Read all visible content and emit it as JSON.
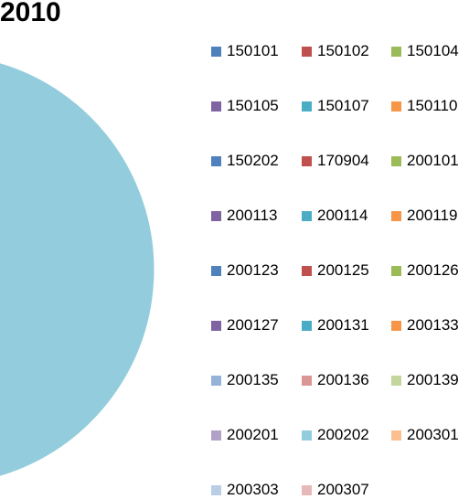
{
  "chart_data": {
    "type": "pie",
    "title": "2010",
    "legend_position": "right",
    "slices": [
      {
        "label": "150101",
        "color": "#4F81BD",
        "value": null
      },
      {
        "label": "150102",
        "color": "#C0504D",
        "value": null
      },
      {
        "label": "150104",
        "color": "#9BBB59",
        "value": null
      },
      {
        "label": "150105",
        "color": "#8064A2",
        "value": null
      },
      {
        "label": "150107",
        "color": "#4BACC6",
        "value": null
      },
      {
        "label": "150110",
        "color": "#F79646",
        "value": null
      },
      {
        "label": "150202",
        "color": "#4F81BD",
        "value": null
      },
      {
        "label": "170904",
        "color": "#C0504D",
        "value": null
      },
      {
        "label": "200101",
        "color": "#9BBB59",
        "value": null
      },
      {
        "label": "200113",
        "color": "#8064A2",
        "value": null
      },
      {
        "label": "200114",
        "color": "#4BACC6",
        "value": null
      },
      {
        "label": "200119",
        "color": "#F79646",
        "value": null
      },
      {
        "label": "200123",
        "color": "#4F81BD",
        "value": null
      },
      {
        "label": "200125",
        "color": "#C0504D",
        "value": null
      },
      {
        "label": "200126",
        "color": "#9BBB59",
        "value": null
      },
      {
        "label": "200127",
        "color": "#8064A2",
        "value": null
      },
      {
        "label": "200131",
        "color": "#4BACC6",
        "value": null
      },
      {
        "label": "200133",
        "color": "#F79646",
        "value": null
      },
      {
        "label": "200135",
        "color": "#95B3D7",
        "value": null
      },
      {
        "label": "200136",
        "color": "#D99694",
        "value": null
      },
      {
        "label": "200139",
        "color": "#C3D69B",
        "value": null
      },
      {
        "label": "200201",
        "color": "#B2A1C7",
        "value": 3
      },
      {
        "label": "200202",
        "color": "#93CDDD",
        "value": 97
      },
      {
        "label": "200301",
        "color": "#FAC090",
        "value": null
      },
      {
        "label": "200303",
        "color": "#B9CDE5",
        "value": null
      },
      {
        "label": "200307",
        "color": "#E6B9B8",
        "value": null
      }
    ]
  }
}
